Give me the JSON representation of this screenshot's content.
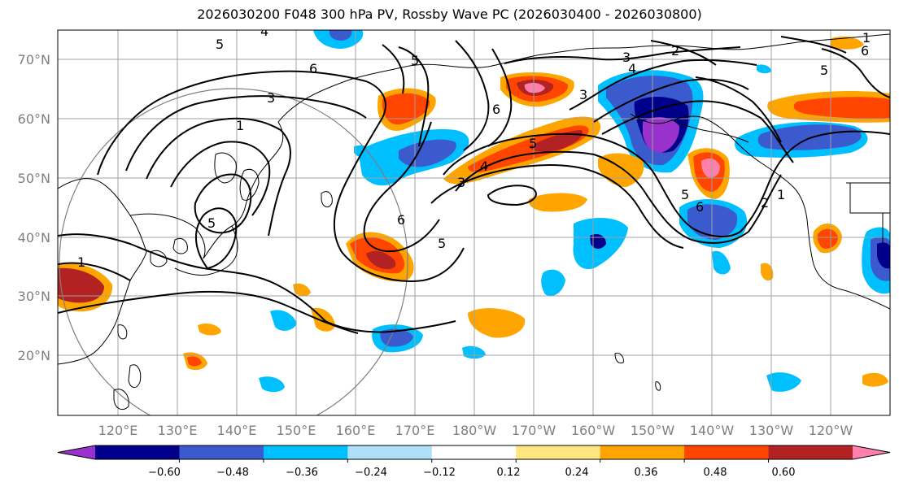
{
  "title": "2026030200 F048 300 hPa PV, Rossby Wave PC (2026030400 - 2026030800)",
  "lat_labels": [
    "70°N",
    "60°N",
    "50°N",
    "40°N",
    "30°N",
    "20°N"
  ],
  "lon_labels": [
    "120°E",
    "130°E",
    "140°E",
    "150°E",
    "160°E",
    "170°E",
    "180°W",
    "170°W",
    "160°W",
    "150°W",
    "140°W",
    "130°W",
    "120°W"
  ],
  "colorbar": {
    "ticks": [
      "−0.60",
      "−0.48",
      "−0.36",
      "−0.24",
      "−0.12",
      "0.12",
      "0.24",
      "0.36",
      "0.48",
      "0.60"
    ],
    "colors": [
      "#9932cc",
      "#00008b",
      "#3a5acd",
      "#00bfff",
      "#b0e0f8",
      "#ffffff",
      "#ffe680",
      "#ffa500",
      "#ff4500",
      "#b22222",
      "#ff80aa"
    ]
  },
  "contour_labels": [
    "6",
    "5",
    "4",
    "3",
    "3",
    "2",
    "1",
    "1",
    "5",
    "4",
    "3",
    "6",
    "6",
    "5",
    "5",
    "3",
    "4",
    "5",
    "6",
    "2",
    "1",
    "5",
    "6",
    "5",
    "1"
  ]
}
